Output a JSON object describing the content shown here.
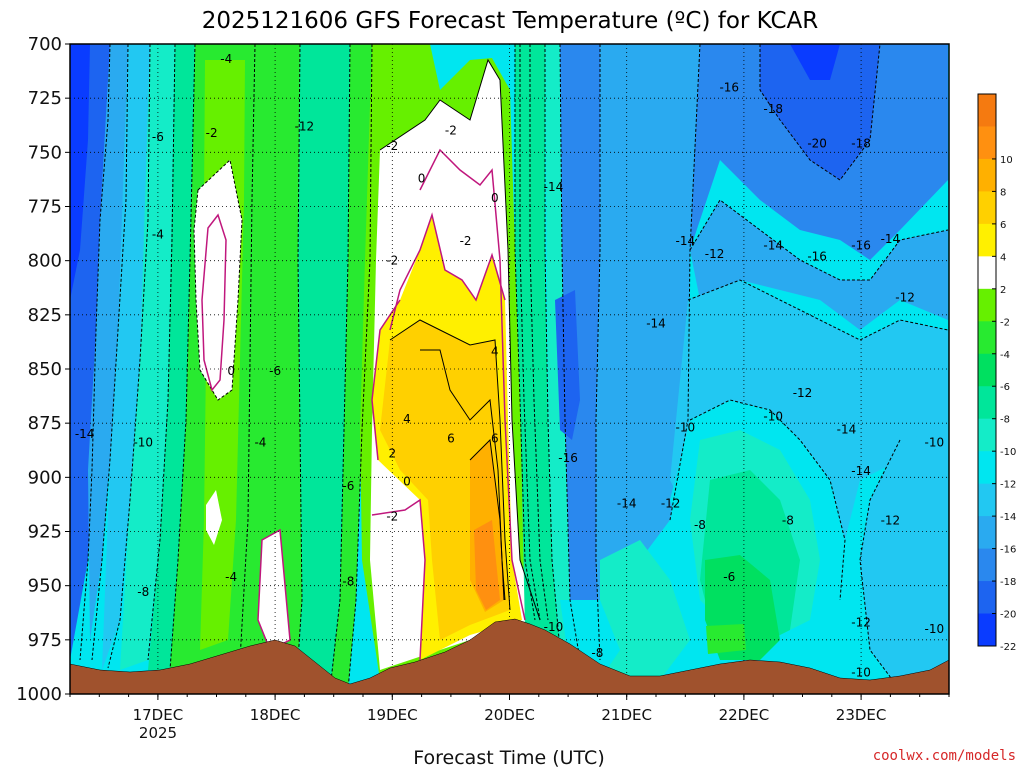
{
  "title": "2025121606 GFS Forecast Temperature (ºC) for KCAR",
  "xlabel": "Forecast Time (UTC)",
  "credit": "coolwx.com/models",
  "chart_data": {
    "type": "heatmap",
    "title": "2025121606 GFS Forecast Temperature (ºC) for KCAR",
    "xlabel": "Forecast Time (UTC)",
    "ylabel": "",
    "x_ticks": [
      "17DEC",
      "18DEC",
      "19DEC",
      "20DEC",
      "21DEC",
      "22DEC",
      "23DEC"
    ],
    "x_year_label": "2025",
    "y_ticks": [
      700,
      725,
      750,
      775,
      800,
      825,
      850,
      875,
      900,
      925,
      950,
      975,
      1000
    ],
    "xlim": [
      "2025-12-16T06",
      "2025-12-23T18"
    ],
    "ylim": [
      1000,
      700
    ],
    "y_reversed": true,
    "grid": true,
    "colorbar": {
      "levels": [
        -24,
        -22,
        -20,
        -18,
        -16,
        -14,
        -12,
        -10,
        -8,
        -6,
        -4,
        -2,
        2,
        4,
        6,
        8,
        10,
        12
      ],
      "colors": [
        "#0a3cff",
        "#1d64f0",
        "#2a88ee",
        "#2aaaf0",
        "#22c8f2",
        "#00e6f0",
        "#14ecc8",
        "#00e69a",
        "#00e060",
        "#28ea30",
        "#66f000",
        "#ffffff",
        "#fff000",
        "#ffd000",
        "#ffb000",
        "#ff9010",
        "#f57a10"
      ],
      "tick_labels": [
        "10",
        "8",
        "6",
        "4",
        "2",
        "-2",
        "-4",
        "-6",
        "-8",
        "-10",
        "-12",
        "-14",
        "-16",
        "-18",
        "-20",
        "-22"
      ]
    },
    "contour_labels": [
      {
        "text": "-4",
        "t": "2025-12-17T14",
        "p": 707
      },
      {
        "text": "-6",
        "t": "2025-12-17T00",
        "p": 743
      },
      {
        "text": "-2",
        "t": "2025-12-17T11",
        "p": 741
      },
      {
        "text": "-12",
        "t": "2025-12-18T06",
        "p": 738
      },
      {
        "text": "-2",
        "t": "2025-12-19T00",
        "p": 747
      },
      {
        "text": "-2",
        "t": "2025-12-19T12",
        "p": 740
      },
      {
        "text": "0",
        "t": "2025-12-19T06",
        "p": 762
      },
      {
        "text": "0",
        "t": "2025-12-19T21",
        "p": 771
      },
      {
        "text": "-2",
        "t": "2025-12-19T15",
        "p": 791
      },
      {
        "text": "-2",
        "t": "2025-12-19T00",
        "p": 800
      },
      {
        "text": "-4",
        "t": "2025-12-17T00",
        "p": 788
      },
      {
        "text": "0",
        "t": "2025-12-17T15",
        "p": 851
      },
      {
        "text": "-6",
        "t": "2025-12-18T00",
        "p": 851
      },
      {
        "text": "4",
        "t": "2025-12-19T21",
        "p": 842
      },
      {
        "text": "4",
        "t": "2025-12-19T03",
        "p": 873
      },
      {
        "text": "6",
        "t": "2025-12-19T12",
        "p": 882
      },
      {
        "text": "6",
        "t": "2025-12-19T21",
        "p": 882
      },
      {
        "text": "2",
        "t": "2025-12-19T00",
        "p": 889
      },
      {
        "text": "0",
        "t": "2025-12-19T03",
        "p": 902
      },
      {
        "text": "-2",
        "t": "2025-12-19T00",
        "p": 918
      },
      {
        "text": "-14",
        "t": "2025-12-16T09",
        "p": 880
      },
      {
        "text": "-10",
        "t": "2025-12-16T21",
        "p": 884
      },
      {
        "text": "-4",
        "t": "2025-12-17T21",
        "p": 884
      },
      {
        "text": "-6",
        "t": "2025-12-18T15",
        "p": 904
      },
      {
        "text": "-4",
        "t": "2025-12-17T15",
        "p": 946
      },
      {
        "text": "-8",
        "t": "2025-12-16T21",
        "p": 953
      },
      {
        "text": "-8",
        "t": "2025-12-18T15",
        "p": 948
      },
      {
        "text": "-14",
        "t": "2025-12-20T09",
        "p": 766
      },
      {
        "text": "-16",
        "t": "2025-12-20T12",
        "p": 891
      },
      {
        "text": "-10",
        "t": "2025-12-20T09",
        "p": 969
      },
      {
        "text": "-8",
        "t": "2025-12-20T18",
        "p": 981
      },
      {
        "text": "-14",
        "t": "2025-12-21T00",
        "p": 912
      },
      {
        "text": "-12",
        "t": "2025-12-21T09",
        "p": 912
      },
      {
        "text": "-14",
        "t": "2025-12-21T06",
        "p": 829
      },
      {
        "text": "-14",
        "t": "2025-12-21T12",
        "p": 791
      },
      {
        "text": "-12",
        "t": "2025-12-21T18",
        "p": 797
      },
      {
        "text": "-10",
        "t": "2025-12-21T12",
        "p": 877
      },
      {
        "text": "-8",
        "t": "2025-12-21T15",
        "p": 922
      },
      {
        "text": "-16",
        "t": "2025-12-21T21",
        "p": 720
      },
      {
        "text": "-18",
        "t": "2025-12-22T06",
        "p": 730
      },
      {
        "text": "-20",
        "t": "2025-12-22T15",
        "p": 746
      },
      {
        "text": "-18",
        "t": "2025-12-23T00",
        "p": 746
      },
      {
        "text": "-14",
        "t": "2025-12-22T06",
        "p": 793
      },
      {
        "text": "-16",
        "t": "2025-12-22T15",
        "p": 798
      },
      {
        "text": "-16",
        "t": "2025-12-23T00",
        "p": 793
      },
      {
        "text": "-14",
        "t": "2025-12-23T06",
        "p": 790
      },
      {
        "text": "-12",
        "t": "2025-12-23T09",
        "p": 817
      },
      {
        "text": "-12",
        "t": "2025-12-22T12",
        "p": 861
      },
      {
        "text": "-10",
        "t": "2025-12-22T06",
        "p": 872
      },
      {
        "text": "-14",
        "t": "2025-12-22T21",
        "p": 878
      },
      {
        "text": "-14",
        "t": "2025-12-23T00",
        "p": 897
      },
      {
        "text": "-10",
        "t": "2025-12-23T15",
        "p": 884
      },
      {
        "text": "-8",
        "t": "2025-12-22T09",
        "p": 920
      },
      {
        "text": "-6",
        "t": "2025-12-21T21",
        "p": 946
      },
      {
        "text": "-12",
        "t": "2025-12-23T06",
        "p": 920
      },
      {
        "text": "-12",
        "t": "2025-12-23T00",
        "p": 967
      },
      {
        "text": "-10",
        "t": "2025-12-23T15",
        "p": 970
      },
      {
        "text": "-10",
        "t": "2025-12-23T00",
        "p": 990
      }
    ]
  }
}
